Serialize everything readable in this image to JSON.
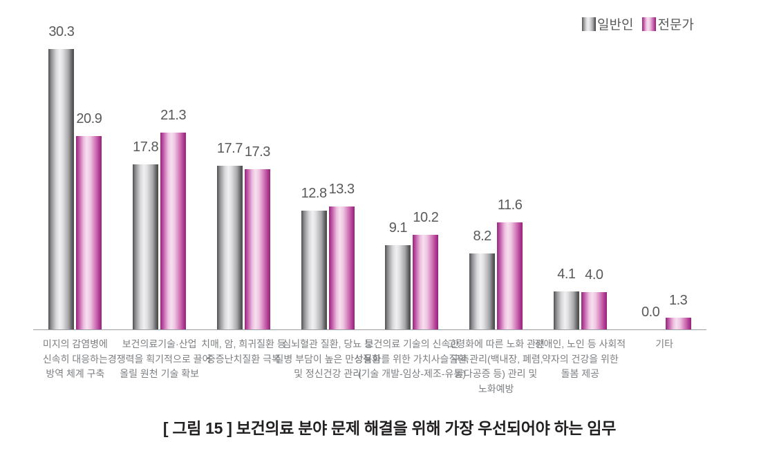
{
  "legend": {
    "items": [
      {
        "id": "general",
        "label": "일반인",
        "color": "#8a8a8d"
      },
      {
        "id": "expert",
        "label": "전문가",
        "color": "#b5399b"
      }
    ]
  },
  "chart_data": {
    "type": "bar",
    "title": "[ 그림 15 ] 보건의료 분야 문제 해결을 위해 가장 우선되어야 하는 임무",
    "categories": [
      [
        "미지의 감염병에",
        "신속히 대응하는",
        "방역 체계 구축"
      ],
      [
        "보건의료기술·산업",
        "경쟁력을 획기적으로 끌어",
        "올릴 원천 기술 확보"
      ],
      [
        "치매, 암, 희귀질환 등",
        "중증난치질환 극복"
      ],
      [
        "심뇌혈관 질환, 당뇨 등",
        "질병 부담이 높은 만성질환",
        "및 정신건강 관리"
      ],
      [
        "보건의료 기술의 신속한",
        "상용화를 위한 가치사슬 구축",
        "(기술 개발-임상-제조-유통)"
      ],
      [
        "고령화에 따른 노화 관련",
        "질환 관리(백내장, 폐렴,",
        "골다공증 등) 관리 및",
        "노화예방"
      ],
      [
        "장애인, 노인 등 사회적",
        "약자의 건강을 위한",
        "돌봄 제공"
      ],
      [
        "기타"
      ]
    ],
    "series": [
      {
        "name": "일반인",
        "values": [
          30.3,
          17.8,
          17.7,
          12.8,
          9.1,
          8.2,
          4.1,
          0.0
        ]
      },
      {
        "name": "전문가",
        "values": [
          20.9,
          21.3,
          17.3,
          13.3,
          10.2,
          11.6,
          4.0,
          1.3
        ]
      }
    ],
    "ylim": [
      0,
      32
    ],
    "grid": false,
    "legend_position": "top-right",
    "value_labels": true
  },
  "colors": {
    "bar_general_dark": "#4e4e51",
    "bar_general_light": "#f0f0f1",
    "bar_expert_dark": "#93267b",
    "bar_expert_light": "#f6e0ef",
    "axis": "#9da0a3",
    "value_label": "#58595b",
    "category_label": "#7d7f82",
    "caption": "#232020"
  }
}
